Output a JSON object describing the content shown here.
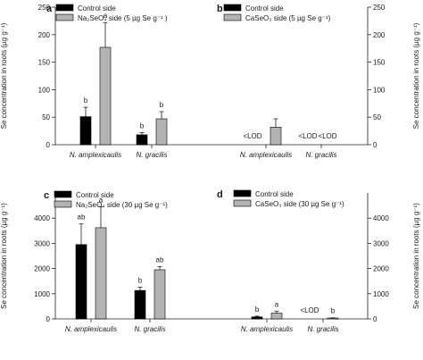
{
  "chart_data": [
    {
      "panel": "a",
      "type": "bar",
      "yaxis": "left",
      "ylim": [
        0,
        250
      ],
      "yticks": [
        0,
        50,
        100,
        150,
        200,
        250
      ],
      "ylabel": "Se concentration in roots (µg g⁻¹)",
      "categories": [
        "N. amplexicaulis",
        "N. gracilis"
      ],
      "series": [
        {
          "name": "Control side",
          "color": "#000000",
          "values": [
            51,
            18
          ],
          "errors": [
            17,
            4
          ],
          "labels": [
            "b",
            "b"
          ]
        },
        {
          "name": "Na₂SeO₄  side (5 µg Se g⁻¹ )",
          "color": "#b3b3b3",
          "values": [
            177,
            47
          ],
          "errors": [
            45,
            13
          ],
          "labels": [
            "a",
            "b"
          ]
        }
      ],
      "legend_position": "top-left"
    },
    {
      "panel": "b",
      "type": "bar",
      "yaxis": "right",
      "ylim": [
        0,
        250
      ],
      "yticks": [
        0,
        50,
        100,
        150,
        200,
        250
      ],
      "ylabel": "Se concentration in roots (µg g⁻¹)",
      "categories": [
        "N. amplexicaulis",
        "N. gracilis"
      ],
      "series": [
        {
          "name": "Control side",
          "color": "#000000",
          "values": [
            null,
            null
          ],
          "errors": [
            null,
            null
          ],
          "labels": [
            "<LOD",
            "<LOD"
          ]
        },
        {
          "name": "CaSeO₃ side (5 µg Se g⁻¹)",
          "color": "#b3b3b3",
          "values": [
            32,
            null
          ],
          "errors": [
            15,
            null
          ],
          "labels": [
            "",
            "<LOD"
          ]
        }
      ],
      "legend_position": "top-left"
    },
    {
      "panel": "c",
      "type": "bar",
      "yaxis": "left",
      "ylim": [
        0,
        5000
      ],
      "yticks": [
        0,
        1000,
        2000,
        3000,
        4000
      ],
      "ylabel": "Se concentration in roots (µg g⁻¹)",
      "categories": [
        "N. amplexicaulis",
        "N. gracilis"
      ],
      "series": [
        {
          "name": "Control side",
          "color": "#000000",
          "values": [
            2950,
            1130
          ],
          "errors": [
            820,
            130
          ],
          "labels": [
            "ab",
            "b"
          ]
        },
        {
          "name": "Na₂SeO₄ side (30 µg Se g⁻¹)",
          "color": "#b3b3b3",
          "values": [
            3620,
            1950
          ],
          "errors": [
            830,
            130
          ],
          "labels": [
            "a",
            "ab"
          ]
        }
      ],
      "legend_position": "top-left"
    },
    {
      "panel": "d",
      "type": "bar",
      "yaxis": "right",
      "ylim": [
        0,
        5000
      ],
      "yticks": [
        0,
        1000,
        2000,
        3000,
        4000
      ],
      "ylabel": "Se concentration in roots (µg g⁻¹)",
      "categories": [
        "N. amplexicaulis",
        "N. gracilis"
      ],
      "series": [
        {
          "name": "Control side",
          "color": "#000000",
          "values": [
            80,
            null
          ],
          "errors": [
            30,
            null
          ],
          "labels": [
            "b",
            "<LOD"
          ]
        },
        {
          "name": "CaSeO₃ side (30 µg Se g⁻¹)",
          "color": "#b3b3b3",
          "values": [
            230,
            35
          ],
          "errors": [
            80,
            10
          ],
          "labels": [
            "a",
            "b"
          ]
        }
      ],
      "legend_position": "top-left"
    }
  ]
}
